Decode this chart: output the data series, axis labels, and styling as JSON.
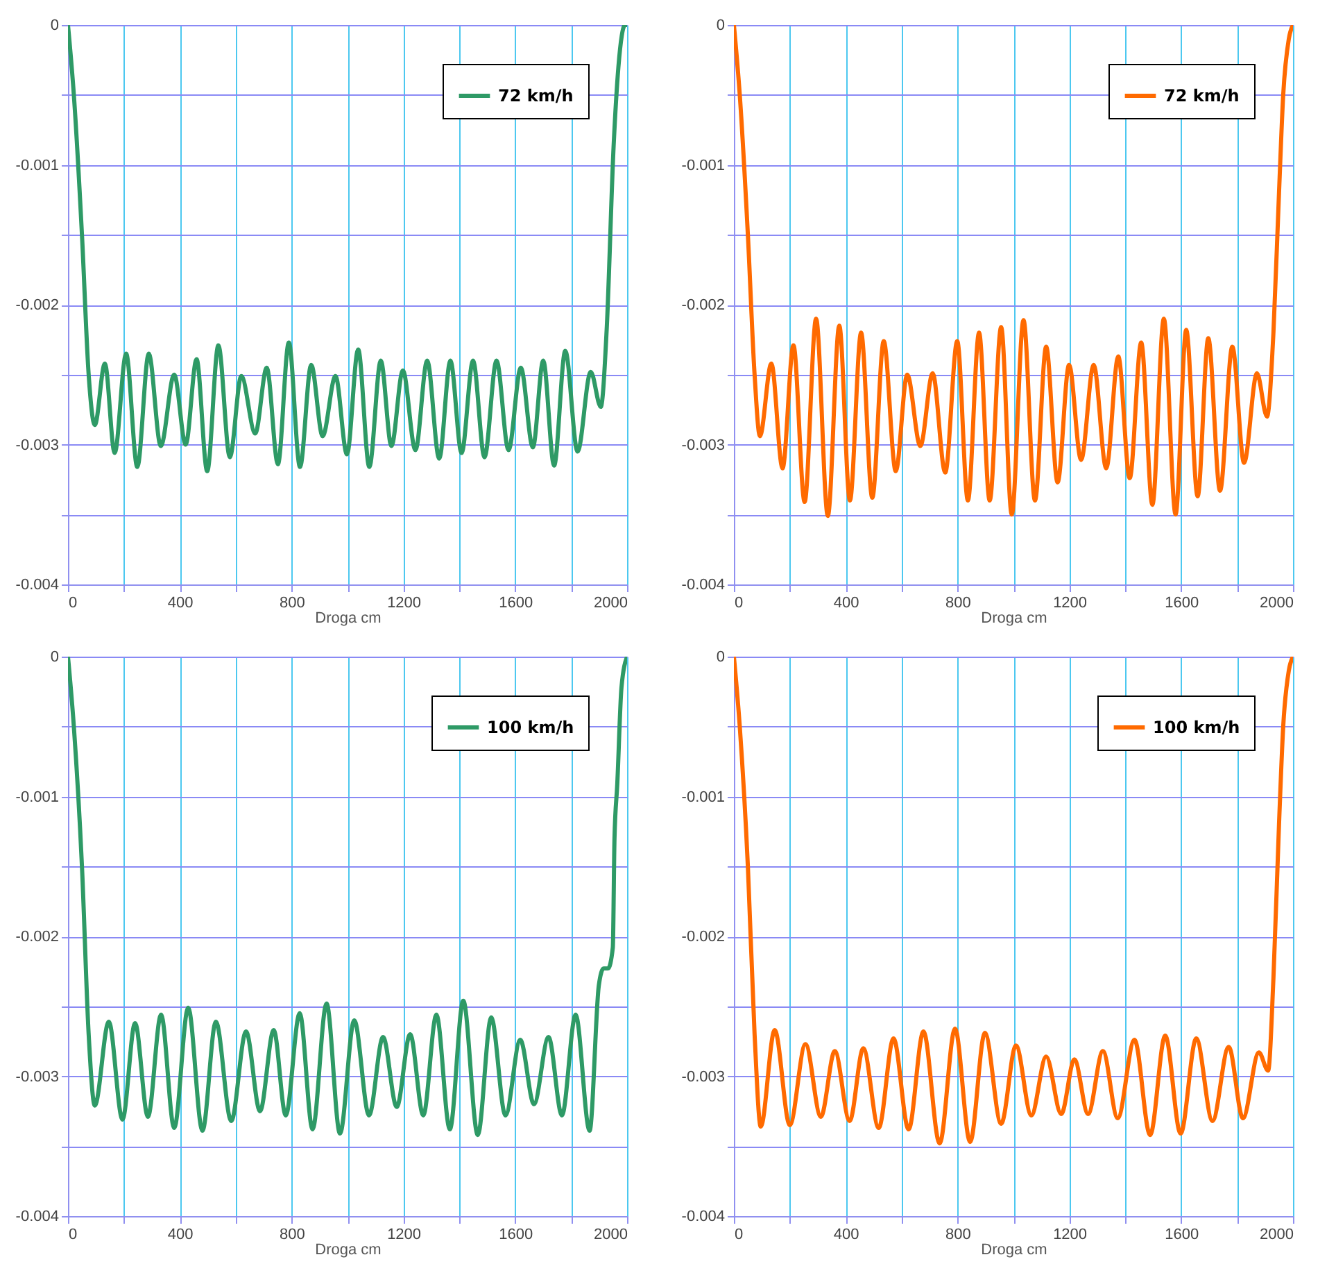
{
  "chart_data": [
    {
      "type": "line",
      "xlabel": "Droga cm",
      "grid": true,
      "legend": "top right",
      "xlim": [
        0,
        2000
      ],
      "ylim": [
        -0.004,
        0
      ],
      "xticks": [
        0,
        {
          "value": 200,
          "label": null
        },
        400,
        {
          "value": 600,
          "label": null
        },
        800,
        {
          "value": 1000,
          "label": null
        },
        1200,
        {
          "value": 1400,
          "label": null
        },
        1600,
        {
          "value": 1800,
          "label": null
        },
        2000
      ],
      "yticks": [
        0,
        {
          "value": -0.0005,
          "label": null
        },
        -0.001,
        {
          "value": -0.0015,
          "label": null
        },
        -0.002,
        {
          "value": -0.0025,
          "label": null
        },
        -0.003,
        {
          "value": -0.0035,
          "label": null
        },
        -0.004
      ],
      "series": [
        {
          "name": "72 km/h",
          "color": "#2e9a66",
          "x": [
            0,
            21,
            50,
            74,
            96,
            132,
            167,
            208,
            248,
            289,
            332,
            380,
            421,
            460,
            498,
            538,
            579,
            620,
            670,
            711,
            751,
            790,
            830,
            870,
            911,
            957,
            998,
            1038,
            1078,
            1119,
            1157,
            1198,
            1243,
            1285,
            1328,
            1368,
            1408,
            1449,
            1490,
            1533,
            1576,
            1620,
            1663,
            1700,
            1739,
            1779,
            1823,
            1870,
            1906,
            1927,
            1952,
            1969,
            1993,
            2000
          ],
          "values": [
            0,
            -0.0005,
            -0.0015,
            -0.0025,
            -0.00286,
            -0.00242,
            -0.00306,
            -0.00235,
            -0.00316,
            -0.00235,
            -0.00301,
            -0.0025,
            -0.003,
            -0.00239,
            -0.00319,
            -0.00229,
            -0.00309,
            -0.00251,
            -0.00292,
            -0.00245,
            -0.00314,
            -0.00227,
            -0.00316,
            -0.00243,
            -0.00294,
            -0.00251,
            -0.00307,
            -0.00232,
            -0.00316,
            -0.0024,
            -0.00301,
            -0.00247,
            -0.00304,
            -0.0024,
            -0.0031,
            -0.0024,
            -0.00306,
            -0.0024,
            -0.00309,
            -0.0024,
            -0.00304,
            -0.00245,
            -0.00302,
            -0.0024,
            -0.00315,
            -0.00233,
            -0.00305,
            -0.00248,
            -0.00273,
            -0.00218,
            -0.00086,
            -0.0003,
            0,
            0
          ]
        }
      ]
    },
    {
      "type": "line",
      "xlabel": "Droga cm",
      "grid": true,
      "legend": "top right",
      "xlim": [
        0,
        2000
      ],
      "ylim": [
        -0.004,
        0
      ],
      "xticks": [
        0,
        {
          "value": 200,
          "label": null
        },
        400,
        {
          "value": 600,
          "label": null
        },
        800,
        {
          "value": 1000,
          "label": null
        },
        1200,
        {
          "value": 1400,
          "label": null
        },
        1600,
        {
          "value": 1800,
          "label": null
        },
        2000
      ],
      "yticks": [
        0,
        {
          "value": -0.0005,
          "label": null
        },
        -0.001,
        {
          "value": -0.0015,
          "label": null
        },
        -0.002,
        {
          "value": -0.0025,
          "label": null
        },
        -0.003,
        {
          "value": -0.0035,
          "label": null
        },
        -0.004
      ],
      "series": [
        {
          "name": "72 km/h",
          "color": "#ff6a00",
          "x": [
            0,
            21,
            50,
            74,
            93,
            134,
            174,
            213,
            253,
            294,
            336,
            377,
            415,
            455,
            495,
            536,
            579,
            620,
            667,
            711,
            756,
            799,
            837,
            877,
            915,
            956,
            994,
            1036,
            1077,
            1117,
            1158,
            1199,
            1242,
            1287,
            1332,
            1375,
            1416,
            1457,
            1497,
            1538,
            1580,
            1618,
            1659,
            1697,
            1739,
            1783,
            1825,
            1871,
            1907,
            1930,
            1950,
            1965,
            1985,
            2000
          ],
          "values": [
            0,
            -0.0005,
            -0.0015,
            -0.0025,
            -0.00294,
            -0.00242,
            -0.00317,
            -0.00229,
            -0.00341,
            -0.0021,
            -0.00351,
            -0.00215,
            -0.0034,
            -0.0022,
            -0.00338,
            -0.00226,
            -0.00319,
            -0.0025,
            -0.00301,
            -0.00249,
            -0.0032,
            -0.00226,
            -0.0034,
            -0.0022,
            -0.0034,
            -0.00216,
            -0.0035,
            -0.00211,
            -0.0034,
            -0.0023,
            -0.00327,
            -0.00243,
            -0.00311,
            -0.00243,
            -0.00317,
            -0.00237,
            -0.00324,
            -0.00227,
            -0.00343,
            -0.0021,
            -0.0035,
            -0.00218,
            -0.00337,
            -0.00224,
            -0.00333,
            -0.0023,
            -0.00313,
            -0.00249,
            -0.0028,
            -0.0022,
            -0.0012,
            -0.0005,
            -0.0001,
            0
          ]
        }
      ]
    },
    {
      "type": "line",
      "xlabel": "Droga cm",
      "grid": true,
      "legend": "top right",
      "xlim": [
        0,
        2000
      ],
      "ylim": [
        -0.004,
        0
      ],
      "xticks": [
        0,
        {
          "value": 200,
          "label": null
        },
        400,
        {
          "value": 600,
          "label": null
        },
        800,
        {
          "value": 1000,
          "label": null
        },
        1200,
        {
          "value": 1400,
          "label": null
        },
        1600,
        {
          "value": 1800,
          "label": null
        },
        2000
      ],
      "yticks": [
        0,
        {
          "value": -0.0005,
          "label": null
        },
        -0.001,
        {
          "value": -0.0015,
          "label": null
        },
        -0.002,
        {
          "value": -0.0025,
          "label": null
        },
        -0.003,
        {
          "value": -0.0035,
          "label": null
        },
        -0.004
      ],
      "series": [
        {
          "name": "100 km/h",
          "color": "#2e9a66",
          "x": [
            0,
            21,
            50,
            74,
            96,
            146,
            195,
            240,
            286,
            333,
            380,
            430,
            481,
            529,
            584,
            637,
            687,
            736,
            779,
            829,
            875,
            925,
            973,
            1024,
            1077,
            1127,
            1176,
            1224,
            1271,
            1318,
            1366,
            1414,
            1466,
            1514,
            1565,
            1618,
            1667,
            1719,
            1767,
            1816,
            1866,
            1899,
            1916,
            1932,
            1949,
            1955,
            1965,
            1980,
            2000
          ],
          "values": [
            0,
            -0.0005,
            -0.0015,
            -0.0027,
            -0.00321,
            -0.00261,
            -0.00331,
            -0.00262,
            -0.00329,
            -0.00256,
            -0.00337,
            -0.00251,
            -0.00339,
            -0.00261,
            -0.00332,
            -0.00268,
            -0.00325,
            -0.00267,
            -0.00328,
            -0.00255,
            -0.00338,
            -0.00248,
            -0.00341,
            -0.0026,
            -0.00328,
            -0.00272,
            -0.00322,
            -0.0027,
            -0.00328,
            -0.00256,
            -0.00338,
            -0.00246,
            -0.00342,
            -0.00258,
            -0.00328,
            -0.00274,
            -0.0032,
            -0.00272,
            -0.00328,
            -0.00256,
            -0.00339,
            -0.00235,
            -0.00223,
            -0.00223,
            -0.00208,
            -0.0013,
            -0.00091,
            -0.00022,
            0
          ]
        }
      ]
    },
    {
      "type": "line",
      "xlabel": "Droga cm",
      "grid": true,
      "legend": "top right",
      "xlim": [
        0,
        2000
      ],
      "ylim": [
        -0.004,
        0
      ],
      "xticks": [
        0,
        {
          "value": 200,
          "label": null
        },
        400,
        {
          "value": 600,
          "label": null
        },
        800,
        {
          "value": 1000,
          "label": null
        },
        1200,
        {
          "value": 1400,
          "label": null
        },
        1600,
        {
          "value": 1800,
          "label": null
        },
        2000
      ],
      "yticks": [
        0,
        {
          "value": -0.0005,
          "label": null
        },
        -0.001,
        {
          "value": -0.0015,
          "label": null
        },
        -0.002,
        {
          "value": -0.0025,
          "label": null
        },
        -0.003,
        {
          "value": -0.0035,
          "label": null
        },
        -0.004
      ],
      "series": [
        {
          "name": "100 km/h",
          "color": "#ff6a00",
          "x": [
            0,
            21,
            50,
            74,
            96,
            146,
            200,
            256,
            311,
            361,
            414,
            463,
            518,
            571,
            625,
            678,
            736,
            791,
            845,
            898,
            956,
            1009,
            1064,
            1117,
            1171,
            1218,
            1267,
            1320,
            1373,
            1433,
            1489,
            1543,
            1598,
            1654,
            1712,
            1770,
            1821,
            1878,
            1911,
            1930,
            1950,
            1965,
            1985,
            2000
          ],
          "values": [
            0,
            -0.0005,
            -0.0015,
            -0.0027,
            -0.00336,
            -0.00267,
            -0.00335,
            -0.00277,
            -0.00329,
            -0.00282,
            -0.00332,
            -0.0028,
            -0.00337,
            -0.00273,
            -0.00338,
            -0.00268,
            -0.00348,
            -0.00266,
            -0.00347,
            -0.00269,
            -0.00334,
            -0.00278,
            -0.00328,
            -0.00286,
            -0.00327,
            -0.00288,
            -0.00327,
            -0.00282,
            -0.0033,
            -0.00274,
            -0.00342,
            -0.00271,
            -0.00341,
            -0.00273,
            -0.00332,
            -0.00279,
            -0.0033,
            -0.00283,
            -0.00296,
            -0.0023,
            -0.0012,
            -0.0005,
            -0.0001,
            0
          ]
        }
      ]
    }
  ]
}
